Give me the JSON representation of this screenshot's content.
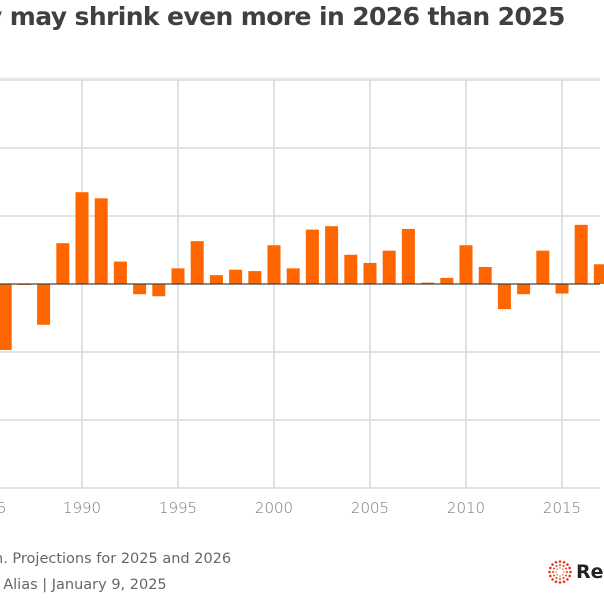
{
  "header": {
    "title": "y may shrink even more in 2026 than 2025"
  },
  "footer": {
    "note": "n. Projections for 2025 and 2026",
    "credit": ". Alias | January 9, 2025",
    "logo_text": "Re",
    "logo_icon": "reuters-dotted-circle-logo-icon"
  },
  "colors": {
    "bar": "#ff6600",
    "grid": "#d9d9d9",
    "zero_line": "#444444",
    "tick_text": "#777777",
    "logo_dots": "#e03a1e"
  },
  "chart_data": {
    "type": "bar",
    "title": "y may shrink even more in 2026 than 2025",
    "xlabel": "",
    "ylabel": "",
    "y_units_note": "y tick labels not visible; values expressed in gridline steps (1 unit = one horizontal gridline interval)",
    "ylim": [
      -3,
      3
    ],
    "y_grid_steps": [
      -3,
      -2,
      -1,
      0,
      1,
      2,
      3
    ],
    "xlim": [
      1985.7,
      2017.3
    ],
    "x_ticks": [
      1985,
      1990,
      1995,
      2000,
      2005,
      2010,
      2015
    ],
    "x_tick_labels": [
      "5",
      "1990",
      "1995",
      "2000",
      "2005",
      "2010",
      "2015"
    ],
    "grid": true,
    "categories": [
      1986,
      1987,
      1988,
      1989,
      1990,
      1991,
      1992,
      1993,
      1994,
      1995,
      1996,
      1997,
      1998,
      1999,
      2000,
      2001,
      2002,
      2003,
      2004,
      2005,
      2006,
      2007,
      2008,
      2009,
      2010,
      2011,
      2012,
      2013,
      2014,
      2015,
      2016,
      2017
    ],
    "values": [
      -0.97,
      -0.01,
      -0.6,
      0.6,
      1.35,
      1.26,
      0.33,
      -0.15,
      -0.18,
      0.23,
      0.63,
      0.13,
      0.21,
      0.19,
      0.57,
      0.23,
      0.8,
      0.85,
      0.43,
      0.31,
      0.49,
      0.81,
      0.02,
      0.09,
      0.57,
      0.25,
      -0.37,
      -0.15,
      0.49,
      -0.14,
      0.87,
      0.29
    ],
    "legend": "none"
  }
}
